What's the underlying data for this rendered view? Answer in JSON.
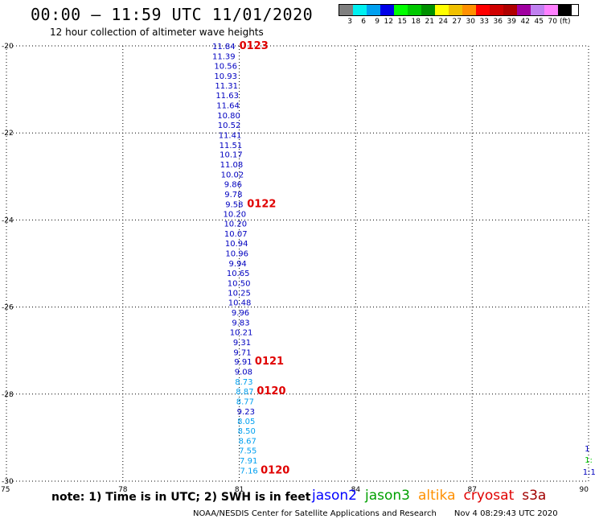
{
  "header": {
    "title": "00:00 – 11:59 UTC 11/01/2020",
    "subtitle": "12 hour collection of altimeter wave heights"
  },
  "color_scale": {
    "colors": [
      "#7f7f7f",
      "#00f0f0",
      "#00a0f0",
      "#0000e8",
      "#00ff00",
      "#00c800",
      "#009000",
      "#ffff00",
      "#f0c000",
      "#ff9000",
      "#ff0000",
      "#d00000",
      "#b00000",
      "#a000a0",
      "#c080f0",
      "#ff80ff",
      "#000000"
    ],
    "labels": [
      "3",
      "6",
      "9",
      "12",
      "15",
      "18",
      "21",
      "24",
      "27",
      "30",
      "33",
      "36",
      "39",
      "42",
      "45",
      "70"
    ],
    "unit": "(ft)"
  },
  "axes": {
    "lat_ticks": [
      "-20",
      "-22",
      "-24",
      "-26",
      "-28",
      "-30"
    ],
    "lon_ticks": [
      "75",
      "78",
      "81",
      "84",
      "87",
      "90"
    ],
    "lat_range": [
      -30,
      -20
    ],
    "lon_range": [
      75,
      90
    ]
  },
  "wave_heights": [
    {
      "lat": -20.0,
      "lon": 80.6,
      "swh": "11.84",
      "color": "#0000c0"
    },
    {
      "lat": -20.23,
      "lon": 80.6,
      "swh": "11.39",
      "color": "#0000c0"
    },
    {
      "lat": -20.45,
      "lon": 80.65,
      "swh": "10.56",
      "color": "#0000c0"
    },
    {
      "lat": -20.68,
      "lon": 80.65,
      "swh": "10.93",
      "color": "#0000c0"
    },
    {
      "lat": -20.91,
      "lon": 80.67,
      "swh": "11.31",
      "color": "#0000c0"
    },
    {
      "lat": -21.13,
      "lon": 80.69,
      "swh": "11.63",
      "color": "#0000c0"
    },
    {
      "lat": -21.36,
      "lon": 80.71,
      "swh": "11.64",
      "color": "#0000c0"
    },
    {
      "lat": -21.59,
      "lon": 80.73,
      "swh": "10.80",
      "color": "#0000c0"
    },
    {
      "lat": -21.81,
      "lon": 80.74,
      "swh": "10.52",
      "color": "#0000c0"
    },
    {
      "lat": -22.04,
      "lon": 80.76,
      "swh": "11.41",
      "color": "#0000c0"
    },
    {
      "lat": -22.27,
      "lon": 80.78,
      "swh": "11.51",
      "color": "#0000c0"
    },
    {
      "lat": -22.49,
      "lon": 80.79,
      "swh": "10.17",
      "color": "#0000c0"
    },
    {
      "lat": -22.72,
      "lon": 80.8,
      "swh": "11.08",
      "color": "#0000c0"
    },
    {
      "lat": -22.95,
      "lon": 80.82,
      "swh": "10.02",
      "color": "#0000c0"
    },
    {
      "lat": -23.17,
      "lon": 80.84,
      "swh": "9.86",
      "color": "#0000c0"
    },
    {
      "lat": -23.4,
      "lon": 80.85,
      "swh": "9.78",
      "color": "#0000c0"
    },
    {
      "lat": -23.63,
      "lon": 80.87,
      "swh": "9.58",
      "color": "#0000c0"
    },
    {
      "lat": -23.85,
      "lon": 80.88,
      "swh": "10.20",
      "color": "#0000c0"
    },
    {
      "lat": -24.08,
      "lon": 80.9,
      "swh": "10.20",
      "color": "#0000c0"
    },
    {
      "lat": -24.31,
      "lon": 80.91,
      "swh": "10.07",
      "color": "#0000c0"
    },
    {
      "lat": -24.53,
      "lon": 80.93,
      "swh": "10.94",
      "color": "#0000c0"
    },
    {
      "lat": -24.76,
      "lon": 80.94,
      "swh": "10.96",
      "color": "#0000c0"
    },
    {
      "lat": -24.99,
      "lon": 80.96,
      "swh": "9.94",
      "color": "#0000c0"
    },
    {
      "lat": -25.21,
      "lon": 80.97,
      "swh": "10.65",
      "color": "#0000c0"
    },
    {
      "lat": -25.44,
      "lon": 80.99,
      "swh": "10.50",
      "color": "#0000c0"
    },
    {
      "lat": -25.67,
      "lon": 81.0,
      "swh": "10.25",
      "color": "#0000c0"
    },
    {
      "lat": -25.89,
      "lon": 81.01,
      "swh": "10.48",
      "color": "#0000c0"
    },
    {
      "lat": -26.12,
      "lon": 81.03,
      "swh": "9.96",
      "color": "#0000c0"
    },
    {
      "lat": -26.35,
      "lon": 81.04,
      "swh": "9.83",
      "color": "#0000c0"
    },
    {
      "lat": -26.57,
      "lon": 81.05,
      "swh": "10.21",
      "color": "#0000c0"
    },
    {
      "lat": -26.8,
      "lon": 81.07,
      "swh": "9.31",
      "color": "#0000c0"
    },
    {
      "lat": -27.03,
      "lon": 81.08,
      "swh": "9.71",
      "color": "#0000c0"
    },
    {
      "lat": -27.25,
      "lon": 81.1,
      "swh": "9.91",
      "color": "#0000c0"
    },
    {
      "lat": -27.48,
      "lon": 81.11,
      "swh": "9.08",
      "color": "#0000c0"
    },
    {
      "lat": -27.71,
      "lon": 81.12,
      "swh": "8.73",
      "color": "#00a0f0"
    },
    {
      "lat": -27.93,
      "lon": 81.14,
      "swh": "8.87",
      "color": "#00a0f0"
    },
    {
      "lat": -28.16,
      "lon": 81.15,
      "swh": "8.77",
      "color": "#00a0f0"
    },
    {
      "lat": -28.39,
      "lon": 81.17,
      "swh": "9.23",
      "color": "#0000c0"
    },
    {
      "lat": -28.61,
      "lon": 81.18,
      "swh": "8.05",
      "color": "#00a0f0"
    },
    {
      "lat": -28.84,
      "lon": 81.19,
      "swh": "8.50",
      "color": "#00a0f0"
    },
    {
      "lat": -29.07,
      "lon": 81.21,
      "swh": "8.67",
      "color": "#00a0f0"
    },
    {
      "lat": -29.29,
      "lon": 81.22,
      "swh": "7.55",
      "color": "#00a0f0"
    },
    {
      "lat": -29.52,
      "lon": 81.24,
      "swh": "7.91",
      "color": "#00a0f0"
    },
    {
      "lat": -29.75,
      "lon": 81.25,
      "swh": "7.16",
      "color": "#00a0f0"
    }
  ],
  "edge_labels": [
    {
      "lat": -29.24,
      "lon": 89.9,
      "text": "1",
      "color": "#0000c0"
    },
    {
      "lat": -29.5,
      "lon": 89.9,
      "text": "1:",
      "color": "#00c800"
    },
    {
      "lat": -29.78,
      "lon": 89.85,
      "text": "1:1",
      "color": "#0000c0"
    }
  ],
  "pass_times": [
    {
      "lat": -20.0,
      "lon": 81.0,
      "text": "0123"
    },
    {
      "lat": -23.63,
      "lon": 81.2,
      "text": "0122"
    },
    {
      "lat": -27.25,
      "lon": 81.4,
      "text": "0121"
    },
    {
      "lat": -27.93,
      "lon": 81.45,
      "text": "0120"
    },
    {
      "lat": -29.75,
      "lon": 81.55,
      "text": "0120"
    }
  ],
  "footer": {
    "note": "note: 1) Time is in UTC; 2) SWH is in feet",
    "satellites": [
      {
        "name": "jason2",
        "color": "#0000ff"
      },
      {
        "name": "jason3",
        "color": "#00a000"
      },
      {
        "name": "altika",
        "color": "#ff9000"
      },
      {
        "name": "cryosat",
        "color": "#e00000"
      },
      {
        "name": "s3a",
        "color": "#a00000"
      }
    ],
    "credit": "NOAA/NESDIS Center for Satellite Applications and Research",
    "timestamp": "Nov  4 08:29:43 UTC 2020"
  }
}
